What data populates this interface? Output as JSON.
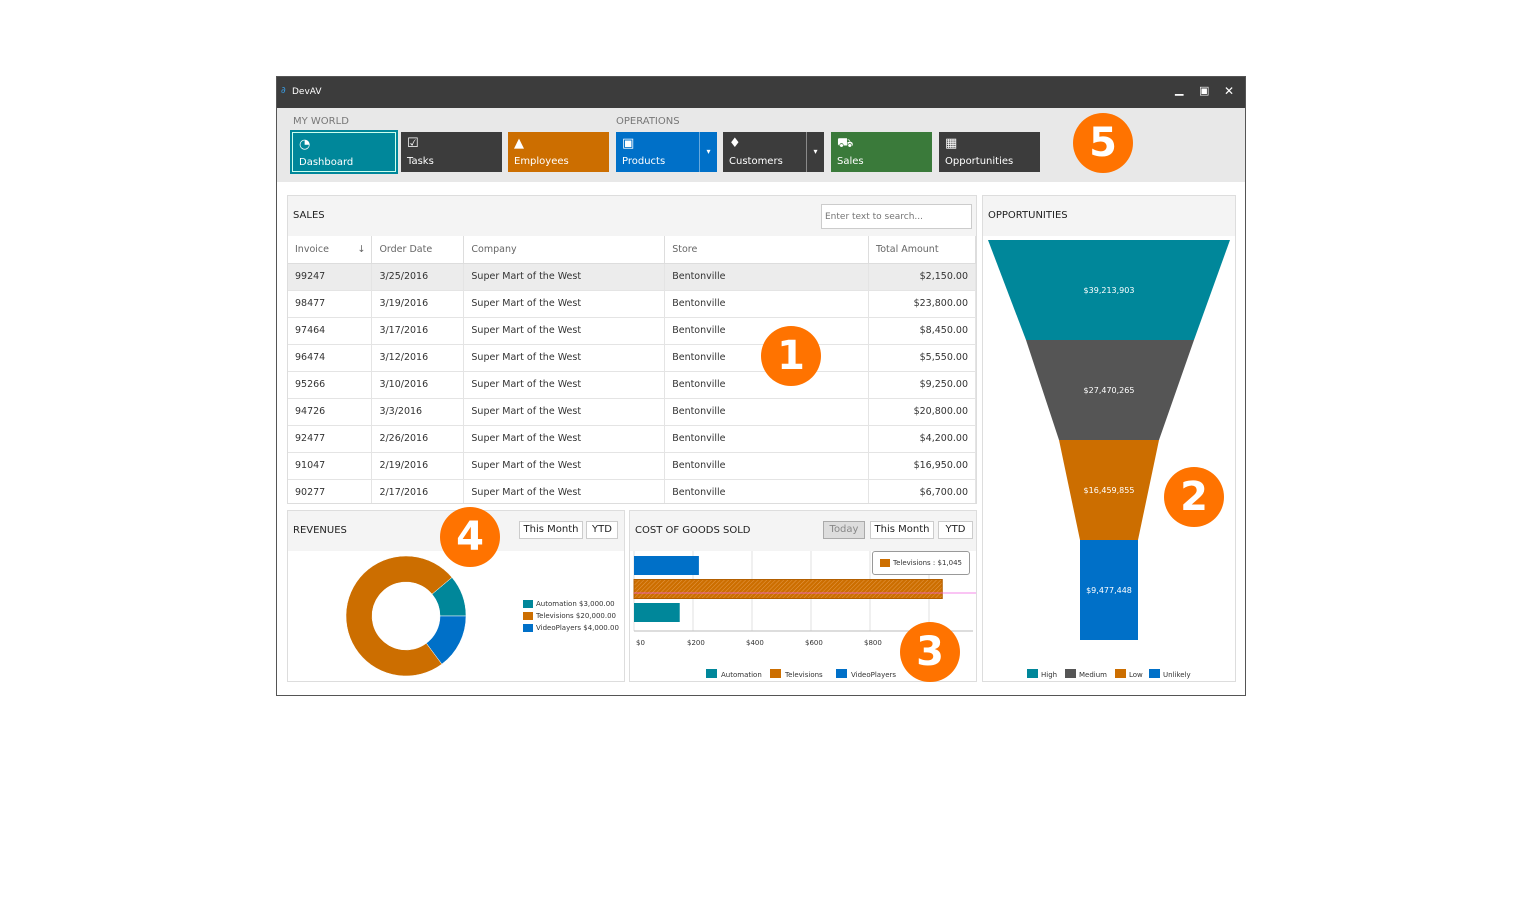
{
  "window": {
    "title": "DevAV",
    "controls": [
      "minimize",
      "maximize",
      "close"
    ]
  },
  "ribbon": {
    "groups": [
      "MY WORLD",
      "OPERATIONS"
    ],
    "tiles": [
      {
        "label": "Dashboard",
        "icon": "dashboard-icon",
        "color": "#00879a",
        "selected": true
      },
      {
        "label": "Tasks",
        "icon": "calendar-check-icon",
        "color": "#3c3c3c"
      },
      {
        "label": "Employees",
        "icon": "person-icon",
        "color": "#cc6e00"
      },
      {
        "label": "Products",
        "icon": "box-icon",
        "color": "#0070c8",
        "dropdown": true
      },
      {
        "label": "Customers",
        "icon": "tie-icon",
        "color": "#3c3c3c",
        "dropdown": true
      },
      {
        "label": "Sales",
        "icon": "cart-icon",
        "color": "#3a7a3a"
      },
      {
        "label": "Opportunities",
        "icon": "presentation-icon",
        "color": "#3c3c3c"
      }
    ]
  },
  "sales": {
    "title": "SALES",
    "search_placeholder": "Enter text to search...",
    "columns": [
      "Invoice",
      "Order Date",
      "Company",
      "Store",
      "Total Amount"
    ],
    "rows": [
      [
        "99247",
        "3/25/2016",
        "Super Mart of the West",
        "Bentonville",
        "$2,150.00"
      ],
      [
        "98477",
        "3/19/2016",
        "Super Mart of the West",
        "Bentonville",
        "$23,800.00"
      ],
      [
        "97464",
        "3/17/2016",
        "Super Mart of the West",
        "Bentonville",
        "$8,450.00"
      ],
      [
        "96474",
        "3/12/2016",
        "Super Mart of the West",
        "Bentonville",
        "$5,550.00"
      ],
      [
        "95266",
        "3/10/2016",
        "Super Mart of the West",
        "Bentonville",
        "$9,250.00"
      ],
      [
        "94726",
        "3/3/2016",
        "Super Mart of the West",
        "Bentonville",
        "$20,800.00"
      ],
      [
        "92477",
        "2/26/2016",
        "Super Mart of the West",
        "Bentonville",
        "$4,200.00"
      ],
      [
        "91047",
        "2/19/2016",
        "Super Mart of the West",
        "Bentonville",
        "$16,950.00"
      ],
      [
        "90277",
        "2/17/2016",
        "Super Mart of the West",
        "Bentonville",
        "$6,700.00"
      ]
    ]
  },
  "revenues": {
    "title": "REVENUES",
    "buttons": [
      "This Month",
      "YTD"
    ],
    "chart_data": {
      "type": "pie",
      "donut": true,
      "categories": [
        "Automation",
        "Televisions",
        "VideoPlayers"
      ],
      "values": [
        3000,
        20000,
        4000
      ],
      "legend": [
        "Automation $3,000.00",
        "Televisions $20,000.00",
        "VideoPlayers $4,000.00"
      ],
      "colors": [
        "#00879a",
        "#cc6e00",
        "#0070c8"
      ],
      "legend_position": "right"
    }
  },
  "cogs": {
    "title": "COST OF GOODS SOLD",
    "buttons": [
      "Today",
      "This Month",
      "YTD"
    ],
    "active": "Today",
    "tooltip": "Televisions : $1,045",
    "chart_data": {
      "type": "bar",
      "orientation": "horizontal",
      "categories": [
        "VideoPlayers",
        "Televisions",
        "Automation"
      ],
      "values": [
        220,
        1045,
        155
      ],
      "colors": [
        "#0070c8",
        "#cc6e00",
        "#00879a"
      ],
      "xlim": [
        0,
        1150
      ],
      "xticks": [
        "$0",
        "$200",
        "$400",
        "$600",
        "$800"
      ],
      "grid": true,
      "legend": [
        "Automation",
        "Televisions",
        "VideoPlayers"
      ],
      "legend_position": "bottom"
    }
  },
  "opportunities": {
    "title": "OPPORTUNITIES",
    "chart_data": {
      "type": "funnel",
      "categories": [
        "High",
        "Medium",
        "Low",
        "Unlikely"
      ],
      "values": [
        39213903,
        27470265,
        16459855,
        9477448
      ],
      "labels": [
        "$39,213,903",
        "$27,470,265",
        "$16,459,855",
        "$9,477,448"
      ],
      "colors": [
        "#00879a",
        "#555555",
        "#cc6e00",
        "#0070c8"
      ],
      "legend_position": "bottom"
    }
  },
  "callouts": [
    "1",
    "2",
    "3",
    "4",
    "5"
  ]
}
